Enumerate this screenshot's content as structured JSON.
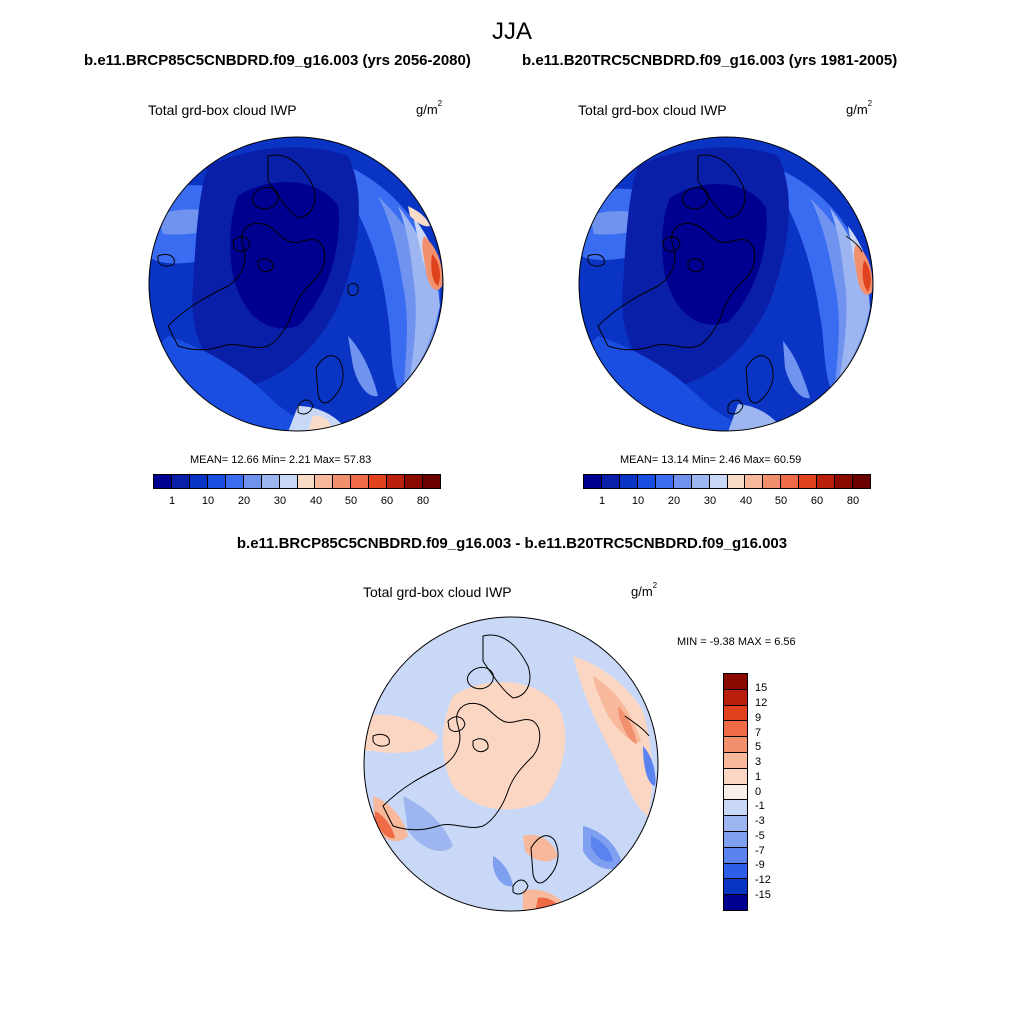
{
  "season": "JJA",
  "panels": [
    {
      "case_title": "b.e11.BRCP85C5CNBDRD.f09_g16.003 (yrs 2056-2080)",
      "variable": "Total grd-box cloud IWP",
      "units_base": "g/m",
      "units_exp": "2",
      "stats_text": "MEAN=  12.66  Min=   2.21  Max=  57.83"
    },
    {
      "case_title": "b.e11.B20TRC5CNBDRD.f09_g16.003 (yrs 1981-2005)",
      "variable": "Total grd-box cloud IWP",
      "units_base": "g/m",
      "units_exp": "2",
      "stats_text": "MEAN=  13.14  Min=   2.46  Max=  60.59"
    }
  ],
  "difference": {
    "title": "b.e11.BRCP85C5CNBDRD.f09_g16.003 - b.e11.B20TRC5CNBDRD.f09_g16.003",
    "variable": "Total grd-box cloud IWP",
    "units_base": "g/m",
    "units_exp": "2",
    "stats_text": "MIN =  -9.38 MAX =   6.56"
  },
  "chart_data": [
    {
      "type": "heatmap",
      "projection": "north-polar-stereographic",
      "title": "b.e11.BRCP85C5CNBDRD.f09_g16.003 (yrs 2056-2080)",
      "variable": "Total grd-box cloud IWP",
      "units": "g/m2",
      "mean": 12.66,
      "min": 2.21,
      "max": 57.83,
      "colorbar_levels": [
        1,
        5,
        10,
        15,
        20,
        25,
        30,
        35,
        40,
        45,
        50,
        55,
        60,
        70,
        80
      ],
      "colorbar_labels": [
        "1",
        "10",
        "20",
        "30",
        "40",
        "50",
        "60",
        "80"
      ]
    },
    {
      "type": "heatmap",
      "projection": "north-polar-stereographic",
      "title": "b.e11.B20TRC5CNBDRD.f09_g16.003 (yrs 1981-2005)",
      "variable": "Total grd-box cloud IWP",
      "units": "g/m2",
      "mean": 13.14,
      "min": 2.46,
      "max": 60.59,
      "colorbar_levels": [
        1,
        5,
        10,
        15,
        20,
        25,
        30,
        35,
        40,
        45,
        50,
        55,
        60,
        70,
        80
      ],
      "colorbar_labels": [
        "1",
        "10",
        "20",
        "30",
        "40",
        "50",
        "60",
        "80"
      ]
    },
    {
      "type": "heatmap",
      "projection": "north-polar-stereographic",
      "title": "b.e11.BRCP85C5CNBDRD.f09_g16.003 - b.e11.B20TRC5CNBDRD.f09_g16.003",
      "variable": "Total grd-box cloud IWP",
      "units": "g/m2",
      "min": -9.38,
      "max": 6.56,
      "colorbar_levels": [
        -15,
        -12,
        -9,
        -7,
        -5,
        -3,
        -1,
        0,
        1,
        3,
        5,
        7,
        9,
        12,
        15
      ],
      "colorbar_labels": [
        "15",
        "12",
        "9",
        "7",
        "5",
        "3",
        "1",
        "0",
        "-1",
        "-3",
        "-5",
        "-7",
        "-9",
        "-12",
        "-15"
      ]
    }
  ],
  "colors": {
    "abs_scale": [
      "#000090",
      "#0a1fa8",
      "#0a34c4",
      "#1a4ee0",
      "#3a6cf2",
      "#6f93ef",
      "#9db6f2",
      "#c9d8f7",
      "#f8dcc8",
      "#f7b89b",
      "#f2906e",
      "#ef6b45",
      "#e0421e",
      "#b81f0c",
      "#8a0a00",
      "#6a0000"
    ],
    "diff_scale": [
      "#8a0a00",
      "#b81f0c",
      "#e0421e",
      "#ef6b45",
      "#f2906e",
      "#f7b89b",
      "#fbd6c3",
      "#f5eee9",
      "#c9d8f7",
      "#9db6f2",
      "#7f9ff0",
      "#5a83ef",
      "#2e5ee8",
      "#0a34c4",
      "#000090"
    ]
  }
}
